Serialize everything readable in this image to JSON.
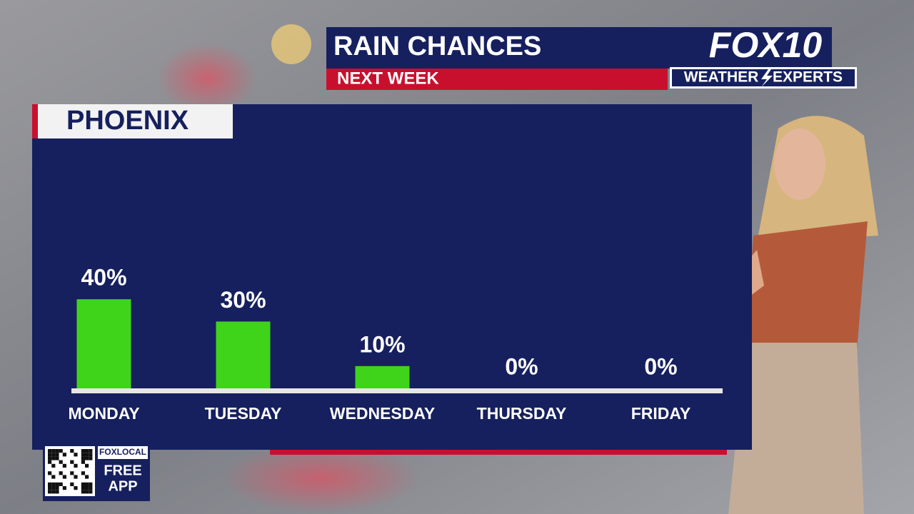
{
  "chart_data": {
    "type": "bar",
    "title": "RAIN CHANCES",
    "subtitle": "NEXT WEEK",
    "location": "PHOENIX",
    "categories": [
      "MONDAY",
      "TUESDAY",
      "WEDNESDAY",
      "THURSDAY",
      "FRIDAY"
    ],
    "values": [
      40,
      30,
      10,
      0,
      0
    ],
    "value_labels": [
      "40%",
      "30%",
      "10%",
      "0%",
      "0%"
    ],
    "color": "#3fd41a"
  },
  "branding": {
    "station": "FOX10",
    "left_word": "WEATHER",
    "right_word": "EXPERTS",
    "app_brand": "FOXLOCAL",
    "app_line1": "FREE",
    "app_line2": "APP"
  }
}
